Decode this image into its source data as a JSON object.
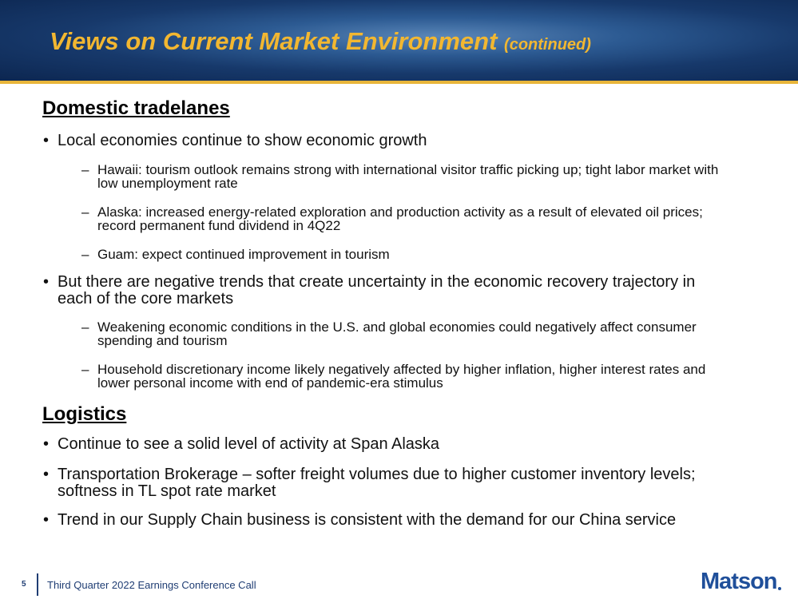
{
  "header": {
    "title": "Views on Current Market Environment",
    "title_suffix": "(continued)"
  },
  "sections": [
    {
      "heading": "Domestic tradelanes",
      "bullets": [
        {
          "text": "Local economies continue to show economic growth",
          "subs": [
            "Hawaii: tourism outlook remains strong with international visitor traffic picking up; tight labor market with low unemployment rate",
            "Alaska: increased energy-related exploration and production activity as a result of elevated oil prices; record permanent fund dividend in 4Q22",
            "Guam: expect continued improvement in tourism"
          ]
        },
        {
          "text": "But there are negative trends that create uncertainty in the economic recovery trajectory in each of the core markets",
          "subs": [
            "Weakening economic conditions in the U.S. and global economies could negatively affect consumer spending and tourism",
            "Household discretionary income likely negatively affected by higher inflation, higher interest rates and lower personal income with end of pandemic-era stimulus"
          ]
        }
      ]
    },
    {
      "heading": "Logistics",
      "bullets": [
        {
          "text": "Continue to see a solid level of activity at Span Alaska",
          "subs": []
        },
        {
          "text": "Transportation Brokerage – softer freight volumes due to higher customer inventory levels; softness in TL spot rate market",
          "subs": []
        },
        {
          "text": "Trend in our Supply Chain business is consistent with the demand for our China service",
          "subs": []
        }
      ]
    }
  ],
  "footer": {
    "page": "5",
    "event": "Third Quarter 2022 Earnings Conference Call",
    "logo": "Matson"
  }
}
